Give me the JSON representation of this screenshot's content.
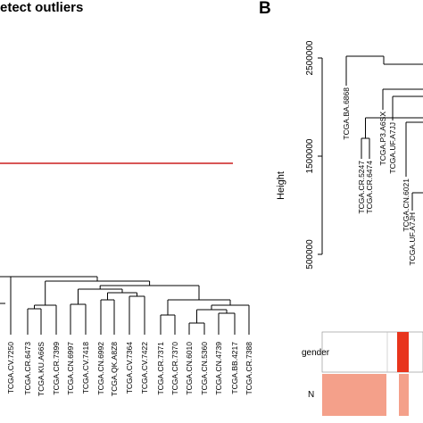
{
  "panel_a": {
    "title": "etect outliers",
    "cut_height_color": "#cc1f1f",
    "leaves": [
      "TCGA.CV.7250",
      "TCGA.CR.6473",
      "TCGA.KU.A66S",
      "TCGA.CR.7399",
      "TCGA.CN.6997",
      "TCGA.CV.7418",
      "TCGA.CN.6992",
      "TCGA.QK.A8Z8",
      "TCGA.CV.7364",
      "TCGA.CV.7422",
      "TCGA.CR.7371",
      "TCGA.CR.7370",
      "TCGA.CN.6010",
      "TCGA.CN.5360",
      "TCGA.CN.4739",
      "TCGA.BB.4217",
      "TCGA.CR.7388"
    ]
  },
  "panel_b": {
    "letter": "B",
    "ylabel": "Height",
    "leaves": [
      "TCGA.BA.6868",
      "TCGA.CR.5247",
      "TCGA.CR.6474",
      "TCGA.P3.A6SX",
      "TCGA.UF.A7JJ",
      "TCGA.CN.6021",
      "TCGA.UF.A7JH"
    ],
    "tracks": [
      {
        "label": "gender"
      },
      {
        "label": "N"
      }
    ],
    "colors": {
      "gender_highlight": "#e8341c",
      "n_salmon": "#f4a08a"
    }
  },
  "chart_data": [
    {
      "type": "dendrogram",
      "title": "etect outliers",
      "cut_height_line": true,
      "leaves": [
        "TCGA.CV.7250",
        "TCGA.CR.6473",
        "TCGA.KU.A66S",
        "TCGA.CR.7399",
        "TCGA.CN.6997",
        "TCGA.CV.7418",
        "TCGA.CN.6992",
        "TCGA.QK.A8Z8",
        "TCGA.CV.7364",
        "TCGA.CV.7422",
        "TCGA.CR.7371",
        "TCGA.CR.7370",
        "TCGA.CN.6010",
        "TCGA.CN.5360",
        "TCGA.CN.4739",
        "TCGA.BB.4217",
        "TCGA.CR.7388"
      ]
    },
    {
      "type": "dendrogram",
      "ylabel": "Height",
      "yticks": [
        500000,
        1500000,
        2500000
      ],
      "ytick_labels": [
        "500000",
        "1500000",
        "2500000"
      ],
      "ylim": [
        300000,
        2700000
      ],
      "leaves": [
        "TCGA.BA.6868",
        "TCGA.CR.5247",
        "TCGA.CR.6474",
        "TCGA.P3.A6SX",
        "TCGA.UF.A7JJ",
        "TCGA.CN.6021",
        "TCGA.UF.A7JH"
      ],
      "annotation_tracks": [
        "gender",
        "N"
      ]
    }
  ]
}
